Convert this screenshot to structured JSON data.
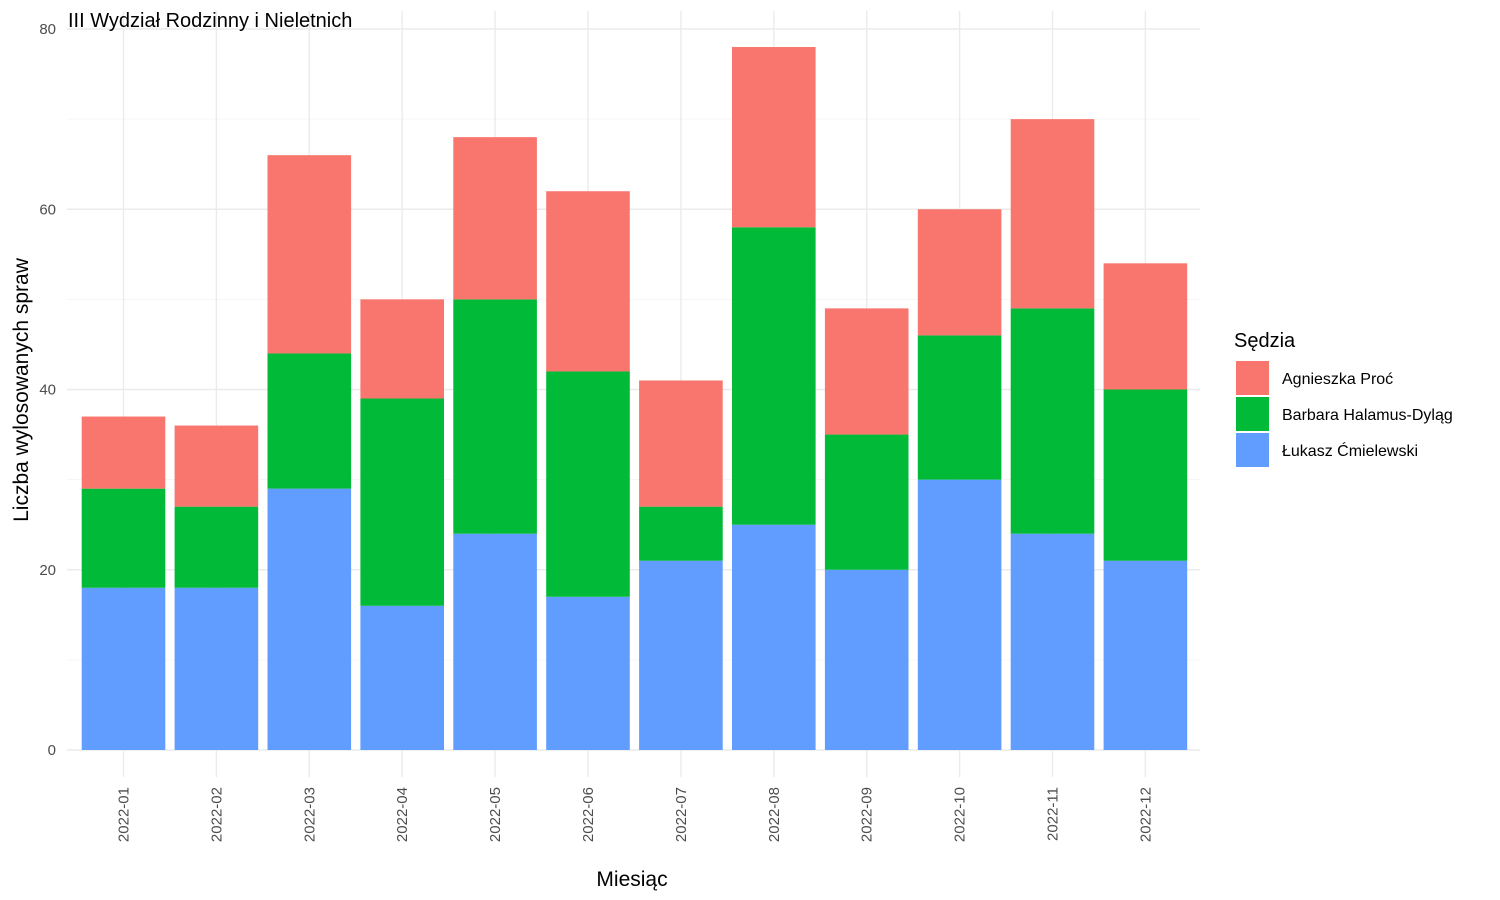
{
  "chart_data": {
    "type": "bar",
    "stacked": true,
    "title": "III Wydział Rodzinny i Nieletnich",
    "xlabel": "Miesiąc",
    "ylabel": "Liczba wylosowanych spraw",
    "ylim": [
      0,
      80
    ],
    "yticks": [
      0,
      20,
      40,
      60,
      80
    ],
    "grid": true,
    "legend_title": "Sędzia",
    "legend_position": "right",
    "categories": [
      "2022-01",
      "2022-02",
      "2022-03",
      "2022-04",
      "2022-05",
      "2022-06",
      "2022-07",
      "2022-08",
      "2022-09",
      "2022-10",
      "2022-11",
      "2022-12"
    ],
    "series": [
      {
        "name": "Łukasz Ćmielewski",
        "color": "#619cff",
        "values": [
          18,
          18,
          29,
          16,
          24,
          17,
          21,
          25,
          20,
          30,
          24,
          21
        ]
      },
      {
        "name": "Barbara Halamus-Dyląg",
        "color": "#00ba38",
        "values": [
          11,
          9,
          15,
          23,
          26,
          25,
          6,
          33,
          15,
          16,
          25,
          19
        ]
      },
      {
        "name": "Agnieszka Proć",
        "color": "#f8766d",
        "values": [
          8,
          9,
          22,
          11,
          18,
          20,
          14,
          20,
          14,
          14,
          21,
          14
        ]
      }
    ],
    "legend_order": [
      "Agnieszka Proć",
      "Barbara Halamus-Dyląg",
      "Łukasz Ćmielewski"
    ]
  }
}
